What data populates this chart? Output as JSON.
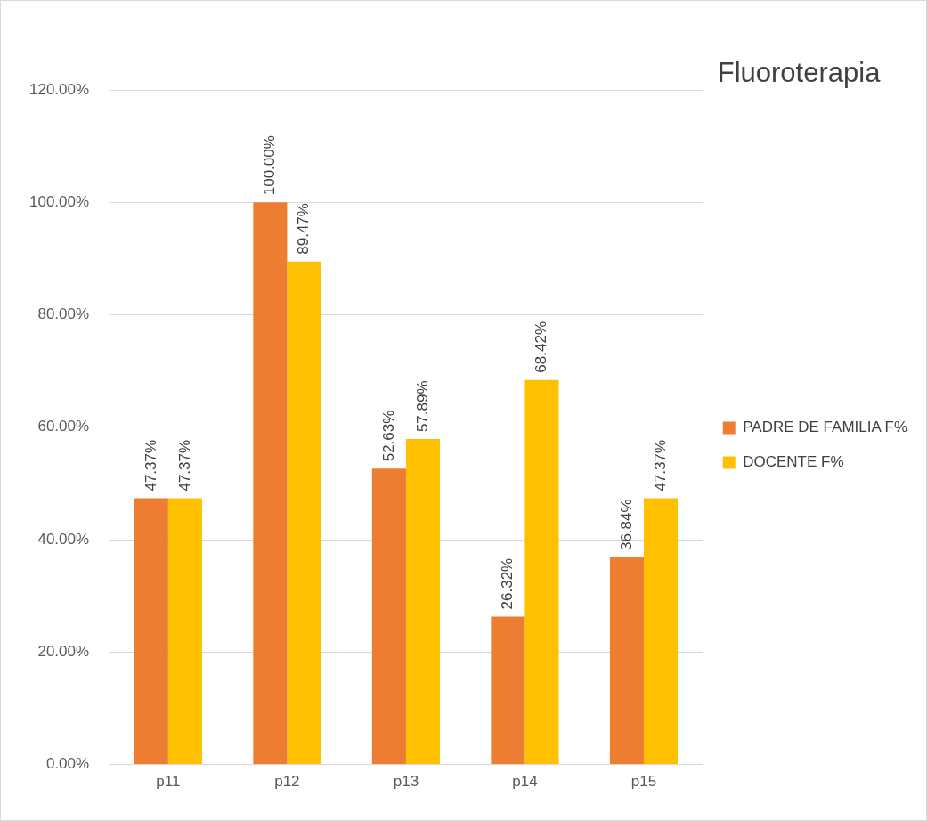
{
  "chart_data": {
    "type": "bar",
    "title": "Fluoroterapia",
    "categories": [
      "p11",
      "p12",
      "p13",
      "p14",
      "p15"
    ],
    "series": [
      {
        "name": "PADRE DE FAMILIA F%",
        "color": "#ed7d31",
        "values": [
          47.37,
          100.0,
          52.63,
          26.32,
          36.84
        ],
        "value_labels": [
          "47.37%",
          "100.00%",
          "52.63%",
          "26.32%",
          "36.84%"
        ]
      },
      {
        "name": "DOCENTE F%",
        "color": "#ffc000",
        "values": [
          47.37,
          89.47,
          57.89,
          68.42,
          47.37
        ],
        "value_labels": [
          "47.37%",
          "89.47%",
          "57.89%",
          "68.42%",
          "47.37%"
        ]
      }
    ],
    "ylim": [
      0,
      120
    ],
    "yticks": [
      {
        "value": 0,
        "label": "0.00%"
      },
      {
        "value": 20,
        "label": "20.00%"
      },
      {
        "value": 40,
        "label": "40.00%"
      },
      {
        "value": 60,
        "label": "60.00%"
      },
      {
        "value": 80,
        "label": "80.00%"
      },
      {
        "value": 100,
        "label": "100.00%"
      },
      {
        "value": 120,
        "label": "120.00%"
      }
    ],
    "grid": "y",
    "legend": "right"
  }
}
